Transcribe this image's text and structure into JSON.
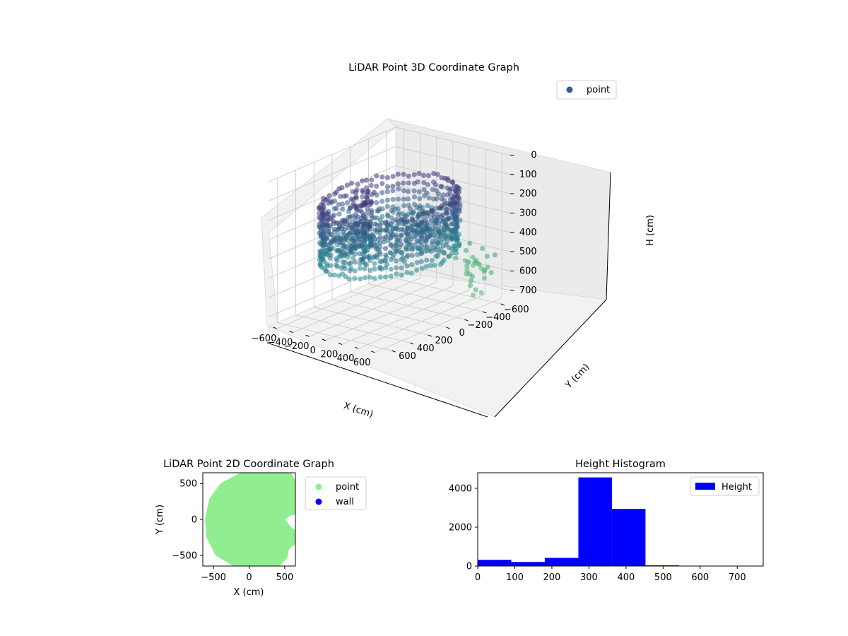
{
  "chart_data": [
    {
      "type": "scatter",
      "projection": "3d",
      "title": "LiDAR Point 3D Coordinate Graph",
      "xlabel": "X (cm)",
      "ylabel": "Y (cm)",
      "zlabel": "H (cm)",
      "xticks": [
        "−600",
        "−400",
        "−200",
        "0",
        "200",
        "400",
        "600"
      ],
      "yticks": [
        "−600",
        "−400",
        "−200",
        "0",
        "200",
        "400",
        "600"
      ],
      "zticks": [
        "0",
        "100",
        "200",
        "300",
        "400",
        "500",
        "600",
        "700"
      ],
      "xlim": [
        -700,
        700
      ],
      "ylim": [
        -700,
        700
      ],
      "zlim": [
        0,
        750
      ],
      "zaxis_inverted": true,
      "colormap": "viridis",
      "legend": {
        "position": "top-right",
        "entries": [
          {
            "name": "point",
            "color": "#2f5f8f"
          }
        ]
      },
      "series": [
        {
          "name": "point",
          "shape": "ring",
          "radius_range": [
            450,
            650
          ],
          "height_range": [
            150,
            450
          ]
        },
        {
          "name": "point",
          "shape": "cluster",
          "x": [
            -200,
            -50
          ],
          "y": [
            100,
            300
          ],
          "height_range": [
            100,
            400
          ]
        }
      ]
    },
    {
      "type": "scatter",
      "title": "LiDAR Point 2D Coordinate Graph",
      "xlabel": "X (cm)",
      "ylabel": "Y (cm)",
      "xticks": [
        "−500",
        "0",
        "500"
      ],
      "yticks": [
        "500",
        "0",
        "−500"
      ],
      "xlim": [
        -650,
        650
      ],
      "ylim": [
        -650,
        650
      ],
      "legend": {
        "position": "outside-right",
        "entries": [
          {
            "name": "point",
            "color": "#90ee90"
          },
          {
            "name": "wall",
            "color": "#0000ff"
          }
        ]
      }
    },
    {
      "type": "bar",
      "title": "Height Histogram",
      "xticks": [
        "0",
        "100",
        "200",
        "300",
        "400",
        "500",
        "600",
        "700"
      ],
      "yticks": [
        "0",
        "2000",
        "4000"
      ],
      "xlim": [
        0,
        770
      ],
      "ylim": [
        0,
        4800
      ],
      "bin_edges": [
        0,
        90.5,
        181,
        271.5,
        362,
        452.5,
        543,
        633.5,
        724
      ],
      "values": [
        320,
        210,
        420,
        4560,
        2940,
        35,
        5,
        5
      ],
      "color": "#0000ff",
      "legend": {
        "position": "top-right",
        "entries": [
          {
            "name": "Height",
            "color": "#0000ff"
          }
        ]
      }
    }
  ]
}
